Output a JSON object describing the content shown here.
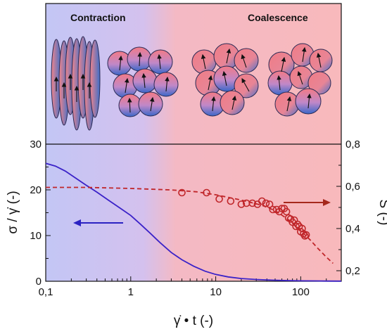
{
  "chart_data": {
    "type": "line",
    "panel_labels": [
      "Contraction",
      "Coalescence"
    ],
    "xlabel": "γ̇ • t (-)",
    "ylabel_left": "σ / γ̇ (-)",
    "ylabel_right": "S (-)",
    "x_scale": "log",
    "xlim": [
      0.1,
      300
    ],
    "ylim_left": [
      0,
      30
    ],
    "ylim_right": [
      0.15,
      0.8
    ],
    "x_ticks": [
      0.1,
      1,
      10,
      100
    ],
    "x_tick_labels": [
      "0,1",
      "1",
      "10",
      "100"
    ],
    "y_ticks_left": [
      0,
      10,
      20,
      30
    ],
    "y_tick_labels_left": [
      "0",
      "10",
      "20",
      "30"
    ],
    "y_ticks_right": [
      0.2,
      0.4,
      0.6,
      0.8
    ],
    "y_tick_labels_right": [
      "0,2",
      "0,4",
      "0,6",
      "0,8"
    ],
    "grid": false,
    "colors": {
      "stress_line": "#3a22c8",
      "order_param": "#c0262a",
      "bg_blue": "#c3c6f5",
      "bg_pink": "#f8b9bc"
    },
    "series": [
      {
        "axis": "left",
        "style": "solid",
        "x": [
          0.1,
          0.13,
          0.17,
          0.22,
          0.3,
          0.4,
          0.55,
          0.75,
          1.0,
          1.3,
          1.7,
          2.2,
          3.0,
          4.0,
          5.5,
          7.5,
          10,
          14,
          20,
          30,
          45,
          70,
          100,
          150,
          200,
          300
        ],
        "y": [
          25.8,
          25.2,
          24.1,
          22.7,
          21.0,
          19.5,
          17.7,
          16.0,
          14.4,
          12.5,
          10.5,
          8.5,
          6.3,
          4.7,
          3.3,
          2.2,
          1.5,
          0.95,
          0.6,
          0.38,
          0.24,
          0.15,
          0.1,
          0.07,
          0.05,
          0.03
        ]
      },
      {
        "axis": "right",
        "style": "dashed",
        "x": [
          0.1,
          0.3,
          1,
          3,
          6,
          10,
          20,
          35,
          50,
          70,
          100,
          130,
          160,
          200,
          240
        ],
        "y": [
          0.595,
          0.595,
          0.59,
          0.583,
          0.574,
          0.56,
          0.535,
          0.51,
          0.485,
          0.445,
          0.39,
          0.345,
          0.305,
          0.265,
          0.235
        ]
      },
      {
        "axis": "right",
        "style": "markers",
        "x": [
          4,
          7.8,
          11,
          15,
          20,
          23,
          27,
          31,
          35,
          39,
          43,
          47,
          52,
          56,
          60,
          64,
          68,
          72,
          76,
          80,
          84,
          88,
          92,
          96,
          100,
          104,
          108,
          112,
          116
        ],
        "y": [
          0.57,
          0.57,
          0.54,
          0.53,
          0.515,
          0.52,
          0.52,
          0.515,
          0.53,
          0.52,
          0.515,
          0.49,
          0.49,
          0.48,
          0.495,
          0.495,
          0.48,
          0.45,
          0.445,
          0.43,
          0.44,
          0.41,
          0.42,
          0.41,
          0.385,
          0.4,
          0.375,
          0.365,
          0.37
        ]
      }
    ],
    "annotations": [
      "left arrow points to left axis",
      "right arrow points to right axis"
    ],
    "legend": "none"
  }
}
